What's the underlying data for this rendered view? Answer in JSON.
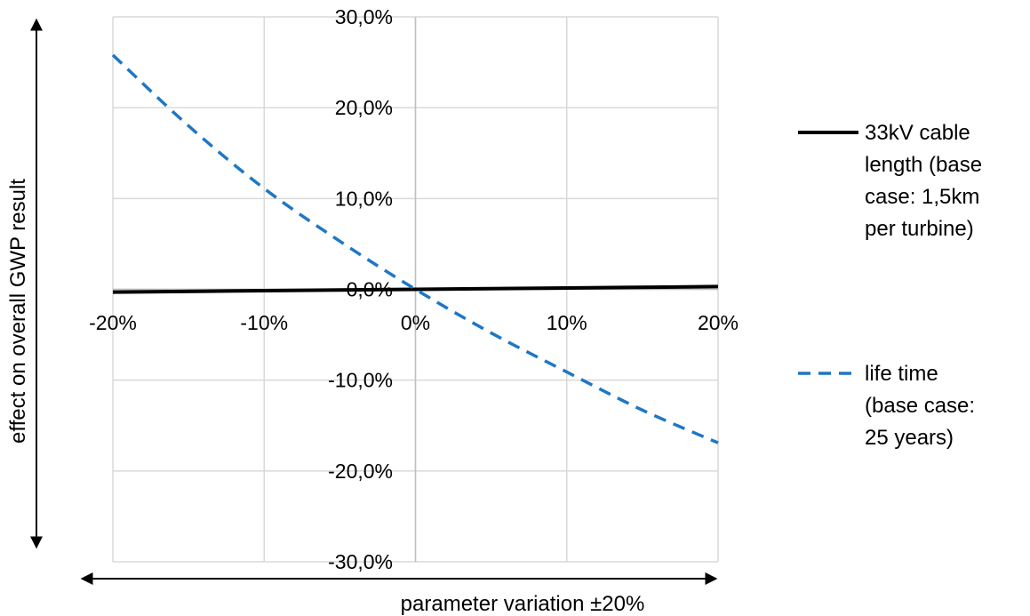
{
  "chart_data": {
    "type": "line",
    "title": "",
    "xlabel": "parameter variation ±20%",
    "ylabel": "effect on overall GWP result",
    "x_ticks": [
      "-20%",
      "-10%",
      "0%",
      "10%",
      "20%"
    ],
    "y_ticks": [
      "30,0%",
      "20,0%",
      "10,0%",
      "0,0%",
      "-10,0%",
      "-20,0%",
      "-30,0%"
    ],
    "xlim": [
      -20,
      20
    ],
    "ylim": [
      -30,
      30
    ],
    "grid": true,
    "legend_position": "right",
    "series": [
      {
        "name": "33kV cable length (base case: 1,5km per turbine)",
        "legend_lines": [
          "33kV cable",
          "length (base",
          "case: 1,5km",
          "per turbine)"
        ],
        "color": "#000000",
        "style": "solid",
        "x": [
          -20,
          -10,
          0,
          10,
          20
        ],
        "y": [
          -0.3,
          -0.15,
          0,
          0.15,
          0.3
        ]
      },
      {
        "name": "life time (base case: 25 years)",
        "legend_lines": [
          "life time",
          "(base case:",
          "25 years)"
        ],
        "color": "#1f77c4",
        "style": "dashed",
        "x": [
          -20,
          -15,
          -10,
          -5,
          0,
          5,
          10,
          15,
          20
        ],
        "y": [
          25.8,
          18.0,
          11.1,
          5.3,
          0,
          -4.8,
          -9.1,
          -13.3,
          -16.9
        ]
      }
    ]
  }
}
